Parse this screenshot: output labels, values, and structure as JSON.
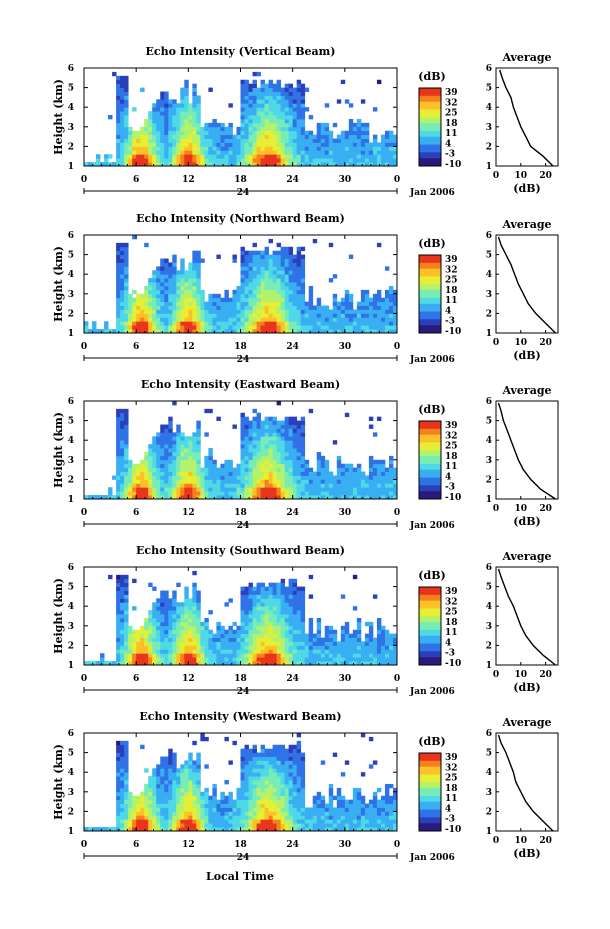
{
  "figure": {
    "date_label": "Jan 2006",
    "xlabel": "Local Time"
  },
  "colorbar": {
    "unit_label": "(dB)",
    "ticks": [
      "39",
      "32",
      "25",
      "18",
      "11",
      "4",
      "-3",
      "-10"
    ]
  },
  "colormap_hex": [
    "#2a1a7e",
    "#2a3fb8",
    "#2f73e6",
    "#39aef3",
    "#4fd9e6",
    "#78ecb6",
    "#b4f26c",
    "#e6ef35",
    "#fcc126",
    "#f6801d",
    "#e8351b"
  ],
  "chart_data": [
    {
      "type": "heatmap",
      "title": "Echo Intensity (Vertical Beam)",
      "ylabel": "Height (km)",
      "x_ticks": [
        "0",
        "6",
        "12",
        "18",
        "24",
        "30",
        "0"
      ],
      "x_mid_label": "24",
      "y_ticks": [
        "1",
        "2",
        "3",
        "4",
        "5",
        "6"
      ],
      "ylim": [
        1,
        6
      ],
      "z_range_dB": [
        -10,
        39
      ],
      "average_profile": {
        "title": "Average",
        "xlabel": "(dB)",
        "x_ticks": [
          "0",
          "10",
          "20"
        ],
        "xlim": [
          0,
          25
        ],
        "y_ticks": [
          "1",
          "2",
          "3",
          "4",
          "5",
          "6"
        ],
        "height_km": [
          1.0,
          1.5,
          2.0,
          2.5,
          3.0,
          3.5,
          4.0,
          4.5,
          5.0,
          5.5,
          5.9
        ],
        "dB": [
          23,
          19,
          14,
          12,
          10,
          8.5,
          7,
          6,
          4,
          2.5,
          1.5
        ]
      }
    },
    {
      "type": "heatmap",
      "title": "Echo Intensity (Northward Beam)",
      "ylabel": "Height (km)",
      "x_ticks": [
        "0",
        "6",
        "12",
        "18",
        "24",
        "30",
        "0"
      ],
      "x_mid_label": "24",
      "y_ticks": [
        "1",
        "2",
        "3",
        "4",
        "5",
        "6"
      ],
      "ylim": [
        1,
        6
      ],
      "z_range_dB": [
        -10,
        39
      ],
      "average_profile": {
        "title": "Average",
        "xlabel": "(dB)",
        "x_ticks": [
          "0",
          "10",
          "20"
        ],
        "xlim": [
          0,
          25
        ],
        "y_ticks": [
          "1",
          "2",
          "3",
          "4",
          "5",
          "6"
        ],
        "height_km": [
          1.0,
          1.5,
          2.0,
          2.5,
          3.0,
          3.5,
          4.0,
          4.5,
          5.0,
          5.5,
          5.9
        ],
        "dB": [
          24,
          20,
          16,
          13,
          11,
          9,
          7.5,
          6,
          4,
          2,
          1
        ]
      }
    },
    {
      "type": "heatmap",
      "title": "Echo Intensity (Eastward Beam)",
      "ylabel": "Height (km)",
      "x_ticks": [
        "0",
        "6",
        "12",
        "18",
        "24",
        "30",
        "0"
      ],
      "x_mid_label": "24",
      "y_ticks": [
        "1",
        "2",
        "3",
        "4",
        "5",
        "6"
      ],
      "ylim": [
        1,
        6
      ],
      "z_range_dB": [
        -10,
        39
      ],
      "average_profile": {
        "title": "Average",
        "xlabel": "(dB)",
        "x_ticks": [
          "0",
          "10",
          "20"
        ],
        "xlim": [
          0,
          25
        ],
        "y_ticks": [
          "1",
          "2",
          "3",
          "4",
          "5",
          "6"
        ],
        "height_km": [
          1.0,
          1.5,
          2.0,
          2.5,
          3.0,
          3.5,
          4.0,
          4.5,
          5.0,
          5.5,
          5.9
        ],
        "dB": [
          24,
          18,
          14,
          11,
          9,
          7.5,
          6,
          4.5,
          3,
          2,
          1
        ]
      }
    },
    {
      "type": "heatmap",
      "title": "Echo Intensity (Southward Beam)",
      "ylabel": "Height (km)",
      "x_ticks": [
        "0",
        "6",
        "12",
        "18",
        "24",
        "30",
        "0"
      ],
      "x_mid_label": "24",
      "y_ticks": [
        "1",
        "2",
        "3",
        "4",
        "5",
        "6"
      ],
      "ylim": [
        1,
        6
      ],
      "z_range_dB": [
        -10,
        39
      ],
      "average_profile": {
        "title": "Average",
        "xlabel": "(dB)",
        "x_ticks": [
          "0",
          "10",
          "20"
        ],
        "xlim": [
          0,
          25
        ],
        "y_ticks": [
          "1",
          "2",
          "3",
          "4",
          "5",
          "6"
        ],
        "height_km": [
          1.0,
          1.5,
          2.0,
          2.5,
          3.0,
          3.5,
          4.0,
          4.5,
          5.0,
          5.5,
          5.9
        ],
        "dB": [
          24,
          19,
          15,
          12,
          10,
          8.5,
          7,
          5,
          3.5,
          2,
          1
        ]
      }
    },
    {
      "type": "heatmap",
      "title": "Echo Intensity (Westward Beam)",
      "ylabel": "Height (km)",
      "x_ticks": [
        "0",
        "6",
        "12",
        "18",
        "24",
        "30",
        "0"
      ],
      "x_mid_label": "24",
      "y_ticks": [
        "1",
        "2",
        "3",
        "4",
        "5",
        "6"
      ],
      "ylim": [
        1,
        6
      ],
      "z_range_dB": [
        -10,
        39
      ],
      "average_profile": {
        "title": "Average",
        "xlabel": "(dB)",
        "x_ticks": [
          "0",
          "10",
          "20"
        ],
        "xlim": [
          0,
          25
        ],
        "y_ticks": [
          "1",
          "2",
          "3",
          "4",
          "5",
          "6"
        ],
        "height_km": [
          1.0,
          1.5,
          2.0,
          2.5,
          3.0,
          3.5,
          4.0,
          4.5,
          5.0,
          5.5,
          5.9
        ],
        "dB": [
          23,
          19,
          15,
          12,
          10,
          8,
          7,
          5.5,
          4,
          2,
          1
        ]
      }
    }
  ]
}
